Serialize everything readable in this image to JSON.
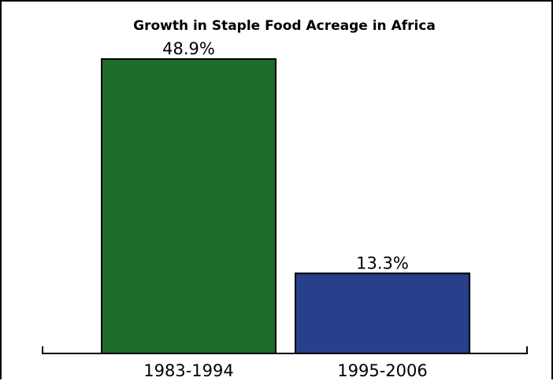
{
  "chart_data": {
    "type": "bar",
    "title": "Growth in Staple Food Acreage in Africa",
    "xlabel": "",
    "ylabel": "",
    "categories": [
      "1983-1994",
      "1995-2006"
    ],
    "values": [
      48.9,
      13.3
    ],
    "value_labels": [
      "48.9%",
      "13.3%"
    ],
    "colors": [
      "#1e6b2a",
      "#26408b"
    ],
    "ylim": [
      0,
      48.9
    ],
    "grid": false,
    "legend": "none"
  }
}
